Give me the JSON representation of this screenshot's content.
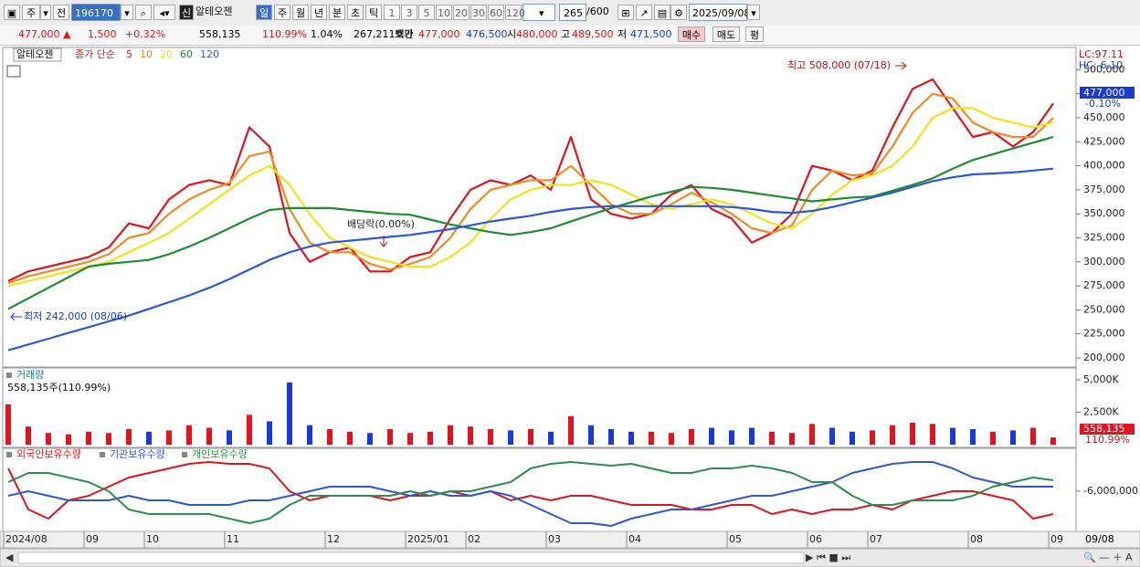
{
  "toolbar": {
    "period": "주",
    "mode": "전",
    "code": "196170",
    "new": "신",
    "name": "알테오젠",
    "intervals": [
      "일",
      "주",
      "월",
      "년",
      "분",
      "초",
      "틱"
    ],
    "steps": [
      "1",
      "3",
      "5",
      "10",
      "20",
      "30",
      "60",
      "120"
    ],
    "count": "265",
    "max": "/600",
    "date": "2025/09/08"
  },
  "quote": {
    "price": "477,000 ▲",
    "change": "1,500",
    "rate": "+0.32%",
    "volume": "558,135",
    "vol_ratio": "110.99%",
    "turnover": "1.04%",
    "amount": "267,211백만",
    "ask_label": "호가",
    "ask": "477,000",
    "bid": "476,500",
    "open_label": "시",
    "open": "480,000",
    "high_label": "고",
    "high": "489,500",
    "low_label": "저",
    "low": "471,500",
    "buy": "매수",
    "sell": "매도",
    "eval": "평"
  },
  "chart_data": [
    {
      "type": "line",
      "name": "알테오젠",
      "price_kind": "종가 단순",
      "categories": [
        "2024/08",
        null,
        null,
        null,
        "09",
        null,
        null,
        "10",
        null,
        null,
        null,
        "11",
        null,
        null,
        null,
        null,
        "12",
        null,
        null,
        null,
        "2025/01",
        null,
        null,
        "02",
        null,
        null,
        null,
        "03",
        null,
        null,
        null,
        "04",
        null,
        null,
        null,
        null,
        "05",
        null,
        null,
        null,
        "06",
        null,
        null,
        "07",
        null,
        null,
        null,
        null,
        "08",
        null,
        null,
        null,
        "09"
      ],
      "series": [
        {
          "name": "5",
          "color": "#e0141e",
          "values": [
            280000,
            290000,
            295000,
            300000,
            305000,
            315000,
            340000,
            335000,
            365000,
            380000,
            385000,
            380000,
            440000,
            420000,
            330000,
            300000,
            310000,
            315000,
            290000,
            290000,
            305000,
            310000,
            345000,
            375000,
            385000,
            380000,
            390000,
            375000,
            430000,
            365000,
            350000,
            345000,
            350000,
            370000,
            380000,
            355000,
            345000,
            320000,
            330000,
            350000,
            400000,
            395000,
            385000,
            395000,
            440000,
            480000,
            490000,
            460000,
            430000,
            435000,
            420000,
            435000,
            465000
          ]
        },
        {
          "name": "10",
          "color": "#f08a24",
          "values": [
            278000,
            285000,
            290000,
            295000,
            300000,
            308000,
            325000,
            330000,
            350000,
            365000,
            375000,
            382000,
            410000,
            415000,
            355000,
            320000,
            310000,
            310000,
            298000,
            292000,
            298000,
            305000,
            325000,
            355000,
            375000,
            380000,
            385000,
            385000,
            400000,
            380000,
            360000,
            350000,
            350000,
            360000,
            372000,
            362000,
            350000,
            335000,
            330000,
            338000,
            375000,
            395000,
            390000,
            392000,
            420000,
            455000,
            475000,
            470000,
            445000,
            435000,
            430000,
            430000,
            450000
          ]
        },
        {
          "name": "20",
          "color": "#f2e21c",
          "values": [
            275000,
            280000,
            285000,
            290000,
            295000,
            300000,
            310000,
            320000,
            330000,
            345000,
            360000,
            375000,
            390000,
            400000,
            380000,
            350000,
            325000,
            315000,
            305000,
            300000,
            295000,
            295000,
            305000,
            320000,
            345000,
            365000,
            375000,
            380000,
            380000,
            385000,
            380000,
            370000,
            360000,
            355000,
            360000,
            365000,
            360000,
            350000,
            340000,
            335000,
            350000,
            370000,
            385000,
            390000,
            400000,
            420000,
            450000,
            460000,
            460000,
            450000,
            445000,
            440000,
            445000
          ]
        },
        {
          "name": "60",
          "color": "#1e8c32",
          "values": [
            251000,
            262000,
            273000,
            284000,
            295000,
            298000,
            300000,
            302000,
            308000,
            316000,
            325000,
            335000,
            345000,
            354000,
            356000,
            356000,
            356000,
            354000,
            352000,
            350000,
            349000,
            344000,
            339000,
            335000,
            331000,
            328000,
            331000,
            335000,
            342000,
            349000,
            356000,
            362000,
            368000,
            373000,
            378000,
            377000,
            375000,
            372000,
            369000,
            366000,
            363000,
            365000,
            367000,
            368000,
            374000,
            380000,
            387000,
            397000,
            406000,
            412000,
            418000,
            424000,
            430000
          ]
        },
        {
          "name": "120",
          "color": "#2e56d8",
          "values": [
            208000,
            214000,
            220000,
            226000,
            232000,
            238000,
            244000,
            251000,
            258000,
            265000,
            273000,
            282000,
            292000,
            302000,
            310000,
            316000,
            320000,
            322000,
            324000,
            326000,
            328000,
            331000,
            334000,
            338000,
            342000,
            345000,
            348000,
            352000,
            355000,
            357000,
            358000,
            358000,
            358000,
            358000,
            358000,
            358000,
            357000,
            355000,
            352000,
            351000,
            353000,
            357000,
            362000,
            367000,
            372000,
            378000,
            384000,
            388000,
            391000,
            392000,
            393000,
            395000,
            397000
          ]
        }
      ],
      "ylim": [
        192400,
        520300
      ],
      "yticks": [
        {
          "value": 200000,
          "label": "200,000"
        },
        {
          "value": 225000,
          "label": "225,000"
        },
        {
          "value": 250000,
          "label": "250,000"
        },
        {
          "value": 275000,
          "label": "275,000"
        },
        {
          "value": 300000,
          "label": "300,000"
        },
        {
          "value": 325000,
          "label": "325,000"
        },
        {
          "value": 350000,
          "label": "350,000"
        },
        {
          "value": 375000,
          "label": "375,000"
        },
        {
          "value": 400000,
          "label": "400,000"
        },
        {
          "value": 425000,
          "label": "425,000"
        },
        {
          "value": 450000,
          "label": "450,000"
        },
        {
          "value": 475000,
          "label": "475,000"
        },
        {
          "value": 500000,
          "label": "500,000"
        }
      ],
      "annotations": {
        "high": "최고 508,000 (07/18)",
        "low": "최저 242,000 (08/06)",
        "dividend": "배당락(0.00%)",
        "lc": "LC:97.11",
        "hc": "HC:-6.10",
        "last": "477,000",
        "last_change": "-0.10%"
      }
    },
    {
      "type": "bar",
      "title": "거래량",
      "subtitle": "558,135주(110.99%)",
      "up_color": "#e0141e",
      "down_color": "#1a3ad8",
      "values": [
        3100,
        1400,
        900,
        800,
        1000,
        900,
        1200,
        1000,
        1100,
        1500,
        1300,
        1100,
        2300,
        1800,
        4800,
        1500,
        1200,
        1000,
        900,
        1200,
        900,
        1000,
        1500,
        1400,
        1200,
        1100,
        1200,
        1000,
        2200,
        1500,
        1200,
        1000,
        1000,
        900,
        1200,
        1300,
        1100,
        1300,
        1000,
        900,
        1600,
        1300,
        1000,
        1100,
        1500,
        1700,
        1600,
        1300,
        1200,
        1000,
        1100,
        1300,
        558.135
      ],
      "ylim": [
        0,
        5915
      ],
      "yticks": [
        {
          "value": 2500,
          "label": "2,500K"
        },
        {
          "value": 5000,
          "label": "5,000K"
        }
      ],
      "last_labels": [
        "558,135",
        "110.99%"
      ]
    },
    {
      "type": "line",
      "series": [
        {
          "name": "외국인보유수량",
          "color": "#e0141e",
          "values": [
            -3500000.0,
            -8000000.0,
            -9000000.0,
            -7000000.0,
            -6500000.0,
            -5500000.0,
            -4500000.0,
            -4000000.0,
            -3500000.0,
            -3000000.0,
            -2800000.0,
            -3000000.0,
            -3000000.0,
            -3500000.0,
            -6000000.0,
            -7000000.0,
            -6500000.0,
            -6500000.0,
            -6500000.0,
            -7000000.0,
            -6500000.0,
            -6500000.0,
            -6000000.0,
            -6500000.0,
            -6000000.0,
            -7000000.0,
            -6500000.0,
            -7000000.0,
            -6500000.0,
            -6500000.0,
            -7000000.0,
            -7500000.0,
            -7500000.0,
            -7500000.0,
            -8000000.0,
            -8000000.0,
            -7500000.0,
            -7500000.0,
            -8500000.0,
            -8000000.0,
            -8500000.0,
            -8000000.0,
            -8000000.0,
            -7500000.0,
            -8000000.0,
            -7000000.0,
            -6500000.0,
            -6000000.0,
            -6000000.0,
            -6500000.0,
            -7000000.0,
            -9000000.0,
            -8500000.0
          ]
        },
        {
          "name": "기관보유수량",
          "color": "#2e56d8",
          "values": [
            -6500000.0,
            -6000000.0,
            -6500000.0,
            -7000000.0,
            -7000000.0,
            -7000000.0,
            -6500000.0,
            -7000000.0,
            -7000000.0,
            -7500000.0,
            -7500000.0,
            -7500000.0,
            -7000000.0,
            -7000000.0,
            -6500000.0,
            -6000000.0,
            -5500000.0,
            -5500000.0,
            -5500000.0,
            -6000000.0,
            -6500000.0,
            -6000000.0,
            -6500000.0,
            -6500000.0,
            -6000000.0,
            -6500000.0,
            -7500000.0,
            -8500000.0,
            -9500000.0,
            -9500000.0,
            -9800000.0,
            -9000000.0,
            -8500000.0,
            -8000000.0,
            -8000000.0,
            -7500000.0,
            -7000000.0,
            -6500000.0,
            -6500000.0,
            -6000000.0,
            -5500000.0,
            -5000000.0,
            -4000000.0,
            -3500000.0,
            -3000000.0,
            -2800000.0,
            -2800000.0,
            -3500000.0,
            -4500000.0,
            -5000000.0,
            -5500000.0,
            -5500000.0,
            -5500000.0
          ]
        },
        {
          "name": "개인보유수량",
          "color": "#2e8c50",
          "values": [
            -5000000.0,
            -4000000.0,
            -4000000.0,
            -4500000.0,
            -5000000.0,
            -6000000.0,
            -8000000.0,
            -8500000.0,
            -8500000.0,
            -8500000.0,
            -8500000.0,
            -9000000.0,
            -9500000.0,
            -9000000.0,
            -7500000.0,
            -6500000.0,
            -6500000.0,
            -6500000.0,
            -6500000.0,
            -6500000.0,
            -6000000.0,
            -6500000.0,
            -6000000.0,
            -6000000.0,
            -5500000.0,
            -5000000.0,
            -3500000.0,
            -3000000.0,
            -2800000.0,
            -3000000.0,
            -3200000.0,
            -3000000.0,
            -3500000.0,
            -4000000.0,
            -4000000.0,
            -3500000.0,
            -3500000.0,
            -3200000.0,
            -3500000.0,
            -4000000.0,
            -5000000.0,
            -5000000.0,
            -6500000.0,
            -7500000.0,
            -7500000.0,
            -7000000.0,
            -7000000.0,
            -7000000.0,
            -6500000.0,
            -5500000.0,
            -5000000.0,
            -4500000.0,
            -4800000.0
          ]
        }
      ],
      "ylim": [
        -10200000.0,
        -2500000.0
      ],
      "yticks": [
        {
          "value": -6000000.0,
          "label": "-6,000,000"
        }
      ]
    }
  ],
  "footer": {
    "date": "09/08"
  }
}
